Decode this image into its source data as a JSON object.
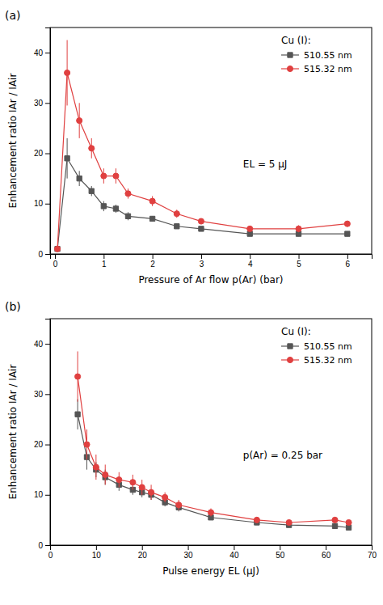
{
  "chart_data": [
    {
      "type": "line",
      "title": "(a)",
      "x_label": "Pressure of Ar flow p(Ar) (bar)",
      "y_label": "Enhancement ratio IAr / IAir",
      "annotation": "EL = 5 μJ",
      "legend_title": "Cu (I):",
      "legend": "upper right",
      "grid": false,
      "xlim": [
        -0.1,
        6.5
      ],
      "ylim": [
        0,
        45
      ],
      "xticks": [
        0,
        1,
        2,
        3,
        4,
        5,
        6
      ],
      "yticks": [
        0,
        10,
        20,
        30,
        40
      ],
      "x": [
        0.05,
        0.25,
        0.5,
        0.75,
        1.0,
        1.25,
        1.5,
        2.0,
        2.5,
        3.0,
        4.0,
        5.0,
        6.0
      ],
      "series": [
        {
          "name": "510.55 nm",
          "color": "#555555",
          "marker": "square",
          "values": [
            1.0,
            19.0,
            15.0,
            12.5,
            9.5,
            9.0,
            7.5,
            7.0,
            5.5,
            5.0,
            4.0,
            4.0,
            4.0
          ],
          "errors": [
            0.3,
            4.0,
            1.5,
            1.0,
            1.0,
            0.8,
            0.8,
            0.5,
            0.5,
            0.5,
            0.5,
            0.5,
            0.5
          ]
        },
        {
          "name": "515.32 nm",
          "color": "#e04040",
          "marker": "circle",
          "values": [
            1.0,
            36.0,
            26.5,
            21.0,
            15.5,
            15.5,
            12.0,
            10.5,
            8.0,
            6.5,
            5.0,
            5.0,
            6.0
          ],
          "errors": [
            0.3,
            6.5,
            3.5,
            2.0,
            1.5,
            1.5,
            1.0,
            1.0,
            0.8,
            0.5,
            0.5,
            0.7,
            0.5
          ]
        }
      ]
    },
    {
      "type": "line",
      "title": "(b)",
      "x_label": "Pulse energy EL (μJ)",
      "y_label": "Enhancement ratio IAr / IAir",
      "annotation": "p(Ar) = 0.25 bar",
      "legend_title": "Cu (I):",
      "legend": "upper right",
      "grid": false,
      "xlim": [
        0,
        70
      ],
      "ylim": [
        0,
        45
      ],
      "xticks": [
        0,
        10,
        20,
        30,
        40,
        50,
        60,
        70
      ],
      "yticks": [
        0,
        10,
        20,
        30,
        40
      ],
      "x": [
        6,
        8,
        10,
        12,
        15,
        18,
        20,
        22,
        25,
        28,
        35,
        45,
        52,
        62,
        65
      ],
      "series": [
        {
          "name": "510.55 nm",
          "color": "#555555",
          "marker": "square",
          "values": [
            26.0,
            17.5,
            15.0,
            13.5,
            12.0,
            11.0,
            10.5,
            10.0,
            8.5,
            7.5,
            5.5,
            4.5,
            4.0,
            3.8,
            3.5
          ],
          "errors": [
            3.0,
            2.5,
            1.5,
            1.5,
            1.2,
            1.0,
            1.0,
            1.0,
            0.8,
            0.8,
            0.5,
            0.5,
            0.5,
            0.5,
            0.4
          ]
        },
        {
          "name": "515.32 nm",
          "color": "#e04040",
          "marker": "circle",
          "values": [
            33.5,
            20.0,
            15.5,
            14.0,
            13.0,
            12.5,
            11.5,
            10.5,
            9.5,
            8.0,
            6.5,
            5.0,
            4.5,
            5.0,
            4.5
          ],
          "errors": [
            5.0,
            3.0,
            2.5,
            2.0,
            1.5,
            1.5,
            1.5,
            1.5,
            1.0,
            1.0,
            0.8,
            0.5,
            0.5,
            0.5,
            0.5
          ]
        }
      ]
    }
  ]
}
